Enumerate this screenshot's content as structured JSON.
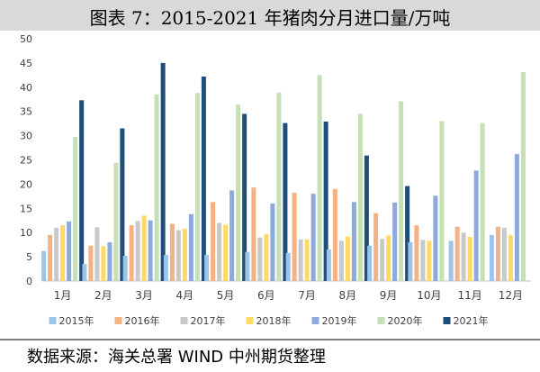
{
  "header": {
    "title": "图表 7：2015-2021 年猪肉分月进口量/万吨"
  },
  "footer": {
    "source": "数据来源：海关总署   WIND   中州期货整理"
  },
  "chart_data": {
    "type": "bar",
    "title": "图表 7：2015-2021 年猪肉分月进口量/万吨",
    "xlabel": "",
    "ylabel": "",
    "ylim": [
      0,
      50
    ],
    "yticks": [
      0,
      5,
      10,
      15,
      20,
      25,
      30,
      35,
      40,
      45,
      50
    ],
    "grid": false,
    "legend_position": "bottom",
    "categories": [
      "1月",
      "2月",
      "3月",
      "4月",
      "5月",
      "6月",
      "7月",
      "8月",
      "9月",
      "10月",
      "11月",
      "12月"
    ],
    "series": [
      {
        "name": "2015年",
        "color": "#9dc3e6",
        "values": [
          6.2,
          3.5,
          5.2,
          5.4,
          5.4,
          6.0,
          5.8,
          6.5,
          7.3,
          8.0,
          8.3,
          9.5
        ]
      },
      {
        "name": "2016年",
        "color": "#f4b183",
        "values": [
          9.5,
          7.3,
          11.5,
          11.8,
          16.3,
          19.3,
          18.2,
          19.0,
          14.0,
          11.5,
          11.2,
          11.2
        ]
      },
      {
        "name": "2017年",
        "color": "#c9c9c9",
        "values": [
          11.0,
          11.1,
          12.4,
          10.5,
          12.0,
          9.0,
          8.6,
          8.3,
          8.7,
          8.5,
          10.0,
          11.0
        ]
      },
      {
        "name": "2018年",
        "color": "#ffd966",
        "values": [
          11.5,
          7.2,
          13.5,
          10.8,
          11.6,
          9.7,
          8.6,
          9.2,
          9.4,
          8.3,
          9.1,
          9.5
        ]
      },
      {
        "name": "2019年",
        "color": "#8ea9db",
        "values": [
          12.3,
          8.0,
          12.5,
          13.8,
          18.7,
          16.0,
          18.0,
          16.3,
          16.2,
          17.6,
          22.8,
          26.2
        ]
      },
      {
        "name": "2020年",
        "color": "#c5e0b4",
        "values": [
          29.7,
          24.4,
          38.5,
          38.8,
          36.4,
          38.9,
          42.5,
          34.5,
          37.1,
          33.0,
          32.6,
          43.1
        ]
      },
      {
        "name": "2021年",
        "color": "#1f4e79",
        "values": [
          37.3,
          31.5,
          45.0,
          42.2,
          34.5,
          32.6,
          32.9,
          25.9,
          19.6,
          null,
          null,
          null
        ]
      }
    ]
  }
}
